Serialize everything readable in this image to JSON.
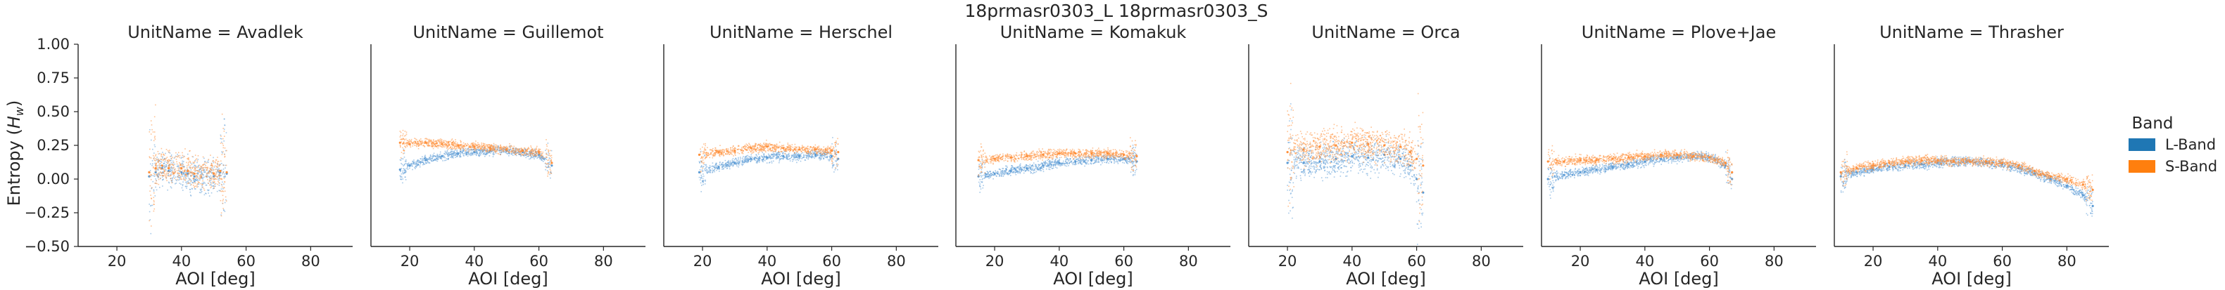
{
  "figure": {
    "suptitle": "18prmasr0303_L 18prmasr0303_S"
  },
  "chart_data": {
    "type": "scatter",
    "xlabel": "AOI [deg]",
    "ylabel_main": "Entropy (",
    "ylabel_sub": "H",
    "ylabel_subscript": "w",
    "ylabel_close": ")",
    "xlim": [
      8,
      93
    ],
    "ylim": [
      -0.5,
      1.0
    ],
    "xticks": [
      "20",
      "40",
      "60",
      "80"
    ],
    "yticks": [
      "1.00",
      "0.75",
      "0.50",
      "0.25",
      "0.00",
      "−0.25",
      "−0.50"
    ],
    "legend": {
      "title": "Band",
      "placement": "right",
      "items": [
        {
          "label": "L-Band",
          "color": "#1f77b4"
        },
        {
          "label": "S-Band",
          "color": "#ff7f0e"
        }
      ]
    },
    "point_colors": {
      "L-Band": "#5b9bd5",
      "S-Band": "#ff8f3a"
    },
    "panels": [
      {
        "title": "UnitName = Avadlek",
        "L-Band": [
          [
            30,
            0.02
          ],
          [
            32,
            0.05
          ],
          [
            34,
            0.08
          ],
          [
            36,
            0.06
          ],
          [
            40,
            0.05
          ],
          [
            42,
            0.04
          ],
          [
            44,
            0.02
          ],
          [
            50,
            0.02
          ],
          [
            52,
            0.05
          ],
          [
            54,
            0.04
          ]
        ],
        "S-Band": [
          [
            30,
            0.05
          ],
          [
            32,
            0.08
          ],
          [
            34,
            0.1
          ],
          [
            36,
            0.08
          ],
          [
            40,
            0.08
          ],
          [
            42,
            0.06
          ],
          [
            44,
            0.04
          ],
          [
            50,
            0.04
          ],
          [
            52,
            0.06
          ],
          [
            54,
            0.05
          ]
        ]
      },
      {
        "title": "UnitName = Guillemot",
        "L-Band": [
          [
            17,
            0.07
          ],
          [
            20,
            0.1
          ],
          [
            25,
            0.14
          ],
          [
            30,
            0.17
          ],
          [
            35,
            0.19
          ],
          [
            40,
            0.2
          ],
          [
            45,
            0.21
          ],
          [
            50,
            0.21
          ],
          [
            55,
            0.2
          ],
          [
            60,
            0.18
          ],
          [
            64,
            0.1
          ]
        ],
        "S-Band": [
          [
            17,
            0.27
          ],
          [
            20,
            0.26
          ],
          [
            25,
            0.27
          ],
          [
            30,
            0.26
          ],
          [
            35,
            0.25
          ],
          [
            40,
            0.24
          ],
          [
            45,
            0.23
          ],
          [
            50,
            0.22
          ],
          [
            55,
            0.21
          ],
          [
            60,
            0.2
          ],
          [
            64,
            0.12
          ]
        ]
      },
      {
        "title": "UnitName = Herschel",
        "L-Band": [
          [
            19,
            0.05
          ],
          [
            25,
            0.09
          ],
          [
            30,
            0.12
          ],
          [
            35,
            0.15
          ],
          [
            40,
            0.16
          ],
          [
            45,
            0.17
          ],
          [
            50,
            0.17
          ],
          [
            55,
            0.18
          ],
          [
            60,
            0.17
          ],
          [
            62,
            0.15
          ]
        ],
        "S-Band": [
          [
            19,
            0.18
          ],
          [
            25,
            0.2
          ],
          [
            30,
            0.21
          ],
          [
            35,
            0.23
          ],
          [
            40,
            0.24
          ],
          [
            45,
            0.23
          ],
          [
            50,
            0.22
          ],
          [
            55,
            0.22
          ],
          [
            60,
            0.21
          ],
          [
            62,
            0.2
          ]
        ]
      },
      {
        "title": "UnitName = Komakuk",
        "L-Band": [
          [
            15,
            0.02
          ],
          [
            20,
            0.04
          ],
          [
            25,
            0.06
          ],
          [
            30,
            0.08
          ],
          [
            35,
            0.1
          ],
          [
            40,
            0.12
          ],
          [
            45,
            0.13
          ],
          [
            50,
            0.14
          ],
          [
            55,
            0.15
          ],
          [
            60,
            0.15
          ],
          [
            64,
            0.13
          ]
        ],
        "S-Band": [
          [
            15,
            0.14
          ],
          [
            20,
            0.15
          ],
          [
            25,
            0.16
          ],
          [
            30,
            0.17
          ],
          [
            35,
            0.18
          ],
          [
            40,
            0.19
          ],
          [
            45,
            0.19
          ],
          [
            50,
            0.19
          ],
          [
            55,
            0.19
          ],
          [
            60,
            0.18
          ],
          [
            64,
            0.17
          ]
        ]
      },
      {
        "title": "UnitName = Orca",
        "L-Band": [
          [
            20,
            0.12
          ],
          [
            25,
            0.12
          ],
          [
            30,
            0.13
          ],
          [
            35,
            0.15
          ],
          [
            40,
            0.17
          ],
          [
            45,
            0.16
          ],
          [
            50,
            0.18
          ],
          [
            55,
            0.15
          ],
          [
            58,
            0.1
          ],
          [
            60,
            0.0
          ],
          [
            62,
            -0.1
          ]
        ],
        "S-Band": [
          [
            20,
            0.2
          ],
          [
            25,
            0.22
          ],
          [
            30,
            0.24
          ],
          [
            35,
            0.25
          ],
          [
            40,
            0.27
          ],
          [
            45,
            0.26
          ],
          [
            50,
            0.25
          ],
          [
            55,
            0.24
          ],
          [
            58,
            0.2
          ],
          [
            60,
            0.15
          ],
          [
            62,
            0.1
          ]
        ]
      },
      {
        "title": "UnitName = Plove+Jae",
        "L-Band": [
          [
            10,
            0.0
          ],
          [
            15,
            0.03
          ],
          [
            20,
            0.05
          ],
          [
            25,
            0.07
          ],
          [
            30,
            0.09
          ],
          [
            35,
            0.11
          ],
          [
            40,
            0.13
          ],
          [
            45,
            0.15
          ],
          [
            50,
            0.16
          ],
          [
            55,
            0.17
          ],
          [
            60,
            0.16
          ],
          [
            65,
            0.1
          ],
          [
            67,
            0.0
          ]
        ],
        "S-Band": [
          [
            10,
            0.13
          ],
          [
            15,
            0.13
          ],
          [
            20,
            0.14
          ],
          [
            25,
            0.14
          ],
          [
            30,
            0.15
          ],
          [
            35,
            0.16
          ],
          [
            40,
            0.17
          ],
          [
            45,
            0.18
          ],
          [
            50,
            0.18
          ],
          [
            55,
            0.17
          ],
          [
            60,
            0.16
          ],
          [
            65,
            0.12
          ],
          [
            67,
            0.05
          ]
        ]
      },
      {
        "title": "UnitName = Thrasher",
        "L-Band": [
          [
            10,
            0.02
          ],
          [
            15,
            0.05
          ],
          [
            20,
            0.07
          ],
          [
            25,
            0.09
          ],
          [
            30,
            0.1
          ],
          [
            35,
            0.11
          ],
          [
            40,
            0.12
          ],
          [
            45,
            0.13
          ],
          [
            50,
            0.13
          ],
          [
            55,
            0.12
          ],
          [
            60,
            0.11
          ],
          [
            65,
            0.08
          ],
          [
            70,
            0.04
          ],
          [
            75,
            0.0
          ],
          [
            80,
            -0.05
          ],
          [
            85,
            -0.12
          ],
          [
            88,
            -0.2
          ]
        ],
        "S-Band": [
          [
            10,
            0.05
          ],
          [
            15,
            0.08
          ],
          [
            20,
            0.1
          ],
          [
            25,
            0.12
          ],
          [
            30,
            0.13
          ],
          [
            35,
            0.14
          ],
          [
            40,
            0.14
          ],
          [
            45,
            0.13
          ],
          [
            50,
            0.13
          ],
          [
            55,
            0.13
          ],
          [
            60,
            0.12
          ],
          [
            65,
            0.1
          ],
          [
            70,
            0.06
          ],
          [
            75,
            0.02
          ],
          [
            80,
            0.0
          ],
          [
            85,
            -0.04
          ],
          [
            88,
            -0.08
          ]
        ]
      }
    ]
  }
}
